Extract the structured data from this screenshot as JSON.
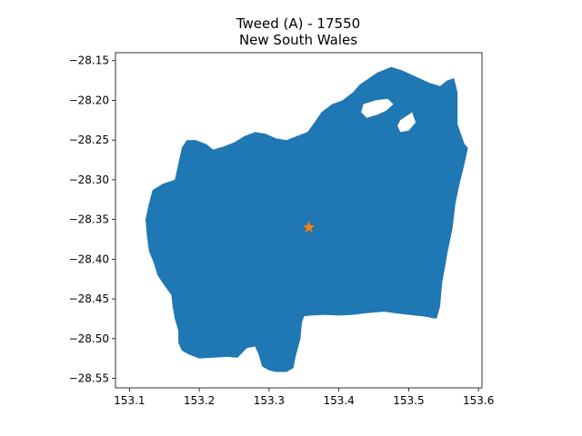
{
  "title": {
    "line1": "Tweed (A) - 17550",
    "line2": "New South Wales"
  },
  "colors": {
    "region_fill": "#1f77b4",
    "marker": "#ff7f0e",
    "background": "#ffffff"
  },
  "chart_data": {
    "type": "map",
    "region": "Tweed (A) - 17550",
    "state": "New South Wales",
    "xlim": [
      153.08,
      153.605
    ],
    "ylim": [
      -28.562,
      -28.14
    ],
    "x_ticks": [
      {
        "value": 153.1,
        "label": "153.1"
      },
      {
        "value": 153.2,
        "label": "153.2"
      },
      {
        "value": 153.3,
        "label": "153.3"
      },
      {
        "value": 153.4,
        "label": "153.4"
      },
      {
        "value": 153.5,
        "label": "153.5"
      },
      {
        "value": 153.6,
        "label": "153.6"
      }
    ],
    "y_ticks": [
      {
        "value": -28.15,
        "label": "−28.15"
      },
      {
        "value": -28.2,
        "label": "−28.20"
      },
      {
        "value": -28.25,
        "label": "−28.25"
      },
      {
        "value": -28.3,
        "label": "−28.30"
      },
      {
        "value": -28.35,
        "label": "−28.35"
      },
      {
        "value": -28.4,
        "label": "−28.40"
      },
      {
        "value": -28.45,
        "label": "−28.45"
      },
      {
        "value": -28.5,
        "label": "−28.50"
      },
      {
        "value": -28.55,
        "label": "−28.55"
      }
    ],
    "centroid": {
      "lon": 153.357,
      "lat": -28.36,
      "marker": "star-icon"
    },
    "boundary": [
      [
        153.43,
        -28.18
      ],
      [
        153.455,
        -28.165
      ],
      [
        153.475,
        -28.158
      ],
      [
        153.49,
        -28.162
      ],
      [
        153.51,
        -28.17
      ],
      [
        153.53,
        -28.178
      ],
      [
        153.545,
        -28.182
      ],
      [
        153.555,
        -28.175
      ],
      [
        153.565,
        -28.172
      ],
      [
        153.57,
        -28.19
      ],
      [
        153.57,
        -28.23
      ],
      [
        153.58,
        -28.255
      ],
      [
        153.585,
        -28.26
      ],
      [
        153.58,
        -28.28
      ],
      [
        153.573,
        -28.305
      ],
      [
        153.567,
        -28.33
      ],
      [
        153.563,
        -28.36
      ],
      [
        153.556,
        -28.39
      ],
      [
        153.548,
        -28.43
      ],
      [
        153.545,
        -28.46
      ],
      [
        153.54,
        -28.475
      ],
      [
        153.52,
        -28.472
      ],
      [
        153.5,
        -28.47
      ],
      [
        153.48,
        -28.468
      ],
      [
        153.465,
        -28.466
      ],
      [
        153.44,
        -28.468
      ],
      [
        153.42,
        -28.47
      ],
      [
        153.4,
        -28.471
      ],
      [
        153.38,
        -28.47
      ],
      [
        153.36,
        -28.471
      ],
      [
        153.35,
        -28.472
      ],
      [
        153.347,
        -28.48
      ],
      [
        153.345,
        -28.5
      ],
      [
        153.342,
        -28.51
      ],
      [
        153.338,
        -28.523
      ],
      [
        153.335,
        -28.537
      ],
      [
        153.325,
        -28.542
      ],
      [
        153.31,
        -28.542
      ],
      [
        153.3,
        -28.54
      ],
      [
        153.29,
        -28.535
      ],
      [
        153.285,
        -28.52
      ],
      [
        153.28,
        -28.51
      ],
      [
        153.268,
        -28.512
      ],
      [
        153.255,
        -28.524
      ],
      [
        153.24,
        -28.523
      ],
      [
        153.22,
        -28.524
      ],
      [
        153.2,
        -28.525
      ],
      [
        153.185,
        -28.52
      ],
      [
        153.175,
        -28.515
      ],
      [
        153.17,
        -28.505
      ],
      [
        153.17,
        -28.49
      ],
      [
        153.165,
        -28.475
      ],
      [
        153.162,
        -28.46
      ],
      [
        153.16,
        -28.445
      ],
      [
        153.15,
        -28.433
      ],
      [
        153.14,
        -28.42
      ],
      [
        153.135,
        -28.405
      ],
      [
        153.128,
        -28.39
      ],
      [
        153.125,
        -28.37
      ],
      [
        153.123,
        -28.35
      ],
      [
        153.128,
        -28.33
      ],
      [
        153.133,
        -28.313
      ],
      [
        153.148,
        -28.305
      ],
      [
        153.165,
        -28.3
      ],
      [
        153.17,
        -28.28
      ],
      [
        153.175,
        -28.26
      ],
      [
        153.182,
        -28.25
      ],
      [
        153.195,
        -28.25
      ],
      [
        153.21,
        -28.255
      ],
      [
        153.22,
        -28.262
      ],
      [
        153.235,
        -28.258
      ],
      [
        153.25,
        -28.253
      ],
      [
        153.265,
        -28.245
      ],
      [
        153.28,
        -28.24
      ],
      [
        153.295,
        -28.242
      ],
      [
        153.31,
        -28.248
      ],
      [
        153.325,
        -28.25
      ],
      [
        153.34,
        -28.245
      ],
      [
        153.355,
        -28.24
      ],
      [
        153.365,
        -28.228
      ],
      [
        153.375,
        -28.215
      ],
      [
        153.39,
        -28.205
      ],
      [
        153.405,
        -28.2
      ],
      [
        153.42,
        -28.19
      ]
    ],
    "holes": [
      [
        [
          153.435,
          -28.205
        ],
        [
          153.452,
          -28.2
        ],
        [
          153.47,
          -28.198
        ],
        [
          153.478,
          -28.205
        ],
        [
          153.468,
          -28.213
        ],
        [
          153.455,
          -28.218
        ],
        [
          153.44,
          -28.222
        ],
        [
          153.432,
          -28.215
        ]
      ],
      [
        [
          153.488,
          -28.225
        ],
        [
          153.505,
          -28.215
        ],
        [
          153.51,
          -28.228
        ],
        [
          153.5,
          -28.238
        ],
        [
          153.488,
          -28.24
        ],
        [
          153.484,
          -28.232
        ]
      ]
    ]
  }
}
